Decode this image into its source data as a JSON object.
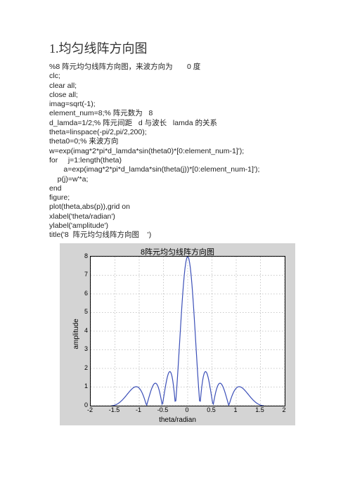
{
  "heading": "1.均匀线阵方向图",
  "code_lines": [
    "%8 阵元均匀线阵方向图，来波方向为       0 度",
    "clc;",
    "clear all;",
    "close all;",
    "imag=sqrt(-1);",
    "element_num=8;% 阵元数为   8",
    "d_lamda=1/2;% 阵元间距   d 与波长   lamda 的关系",
    "theta=linspace(-pi/2,pi/2,200);",
    "theta0=0;% 来波方向",
    "w=exp(imag*2*pi*d_lamda*sin(theta0)*[0:element_num-1]');",
    "for     j=1:length(theta)",
    "       a=exp(imag*2*pi*d_lamda*sin(theta(j))*[0:element_num-1]');",
    "    p(j)=w'*a;",
    "end",
    "figure;",
    "plot(theta,abs(p)),grid on",
    "xlabel('theta/radian')",
    "ylabel('amplitude')",
    "title('8  阵元均匀线阵方向图    ')"
  ],
  "chart": {
    "type": "line",
    "title": "8阵元均匀线阵方向图",
    "xlabel": "theta/radian",
    "ylabel": "amplitude",
    "xlim": [
      -2,
      2
    ],
    "ylim": [
      0,
      8
    ],
    "xticks": [
      -2,
      -1.5,
      -1,
      -0.5,
      0,
      0.5,
      1,
      1.5,
      2
    ],
    "yticks": [
      0,
      1,
      2,
      3,
      4,
      5,
      6,
      7,
      8
    ],
    "background_color": "#d4d4d4",
    "plot_bg": "#ffffff",
    "grid_color": "#777777",
    "line_color": "#3b4fb8",
    "line_width": 1.2,
    "element_num": 8,
    "d_lamda": 0.5,
    "theta_start": -1.5708,
    "theta_end": 1.5708,
    "npoints": 200
  }
}
